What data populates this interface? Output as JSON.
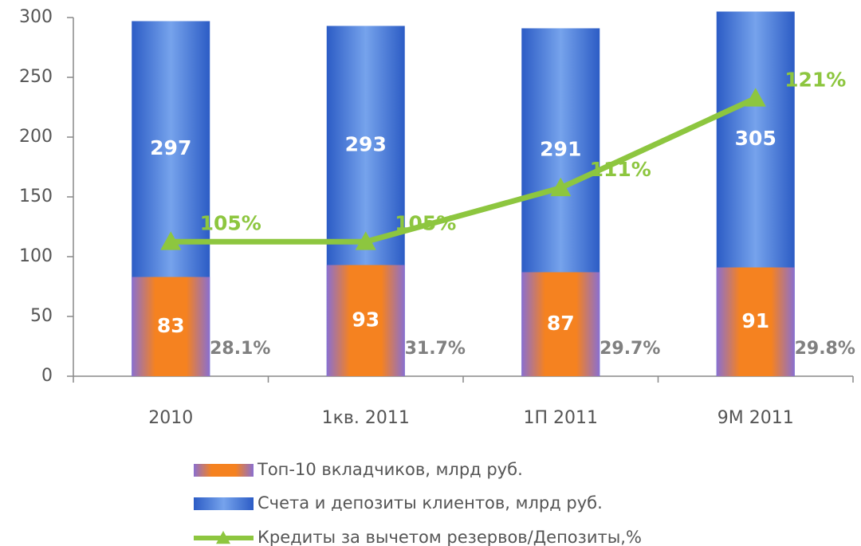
{
  "chart_data": {
    "type": "bar",
    "categories": [
      "2010",
      "1кв. 2011",
      "1П 2011",
      "9М 2011"
    ],
    "series": [
      {
        "name": "Топ-10 вкладчиков, млрд руб.",
        "type": "bar",
        "color": "#f58220",
        "values": [
          83,
          93,
          87,
          91
        ]
      },
      {
        "name": "Счета и депозиты клиентов, млрд руб.",
        "type": "bar",
        "color": "#4a7fd8",
        "values": [
          297,
          293,
          291,
          305
        ]
      },
      {
        "name": "Кредиты за вычетом резервов/Депозиты,%",
        "type": "line",
        "axis": "y2",
        "color": "#8dc63f",
        "values": [
          105,
          105,
          111,
          121
        ],
        "value_labels": [
          "105%",
          "105%",
          "111%",
          "121%"
        ]
      }
    ],
    "ratio_labels": [
      "28.1%",
      "31.7%",
      "29.7%",
      "29.8%"
    ],
    "ylim": [
      0,
      300
    ],
    "yticks": [
      0,
      50,
      100,
      150,
      200,
      250,
      300
    ],
    "y2lim": [
      90,
      130
    ],
    "grid": false
  }
}
